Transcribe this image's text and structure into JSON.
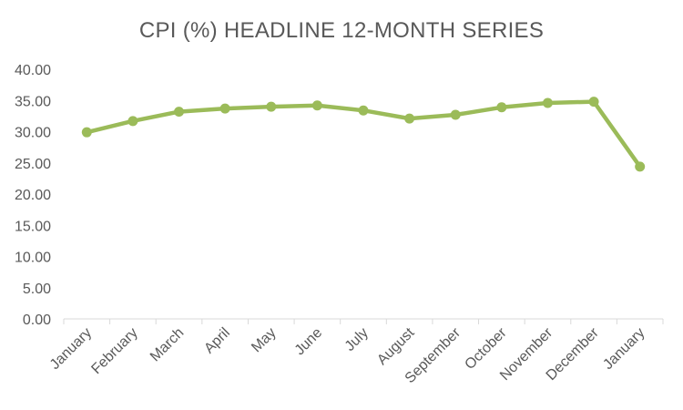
{
  "chart_data": {
    "type": "line",
    "title": "CPI (%) HEADLINE 12-MONTH SERIES",
    "categories": [
      "January",
      "February",
      "March",
      "April",
      "May",
      "June",
      "July",
      "August",
      "September",
      "October",
      "November",
      "December",
      "January"
    ],
    "series": [
      {
        "values": [
          29.9,
          31.7,
          33.2,
          33.7,
          34.0,
          34.2,
          33.4,
          32.1,
          32.7,
          33.9,
          34.6,
          34.8,
          24.4
        ]
      }
    ],
    "ylim": [
      0,
      40
    ],
    "yticks": [
      "0.00",
      "5.00",
      "10.00",
      "15.00",
      "20.00",
      "25.00",
      "30.00",
      "35.00",
      "40.00"
    ],
    "xlabel": "",
    "ylabel": "",
    "grid": false,
    "legend": "none",
    "colors": {
      "line": "#9BBB59",
      "axis": "#D9D9D9",
      "text": "#595959"
    }
  }
}
